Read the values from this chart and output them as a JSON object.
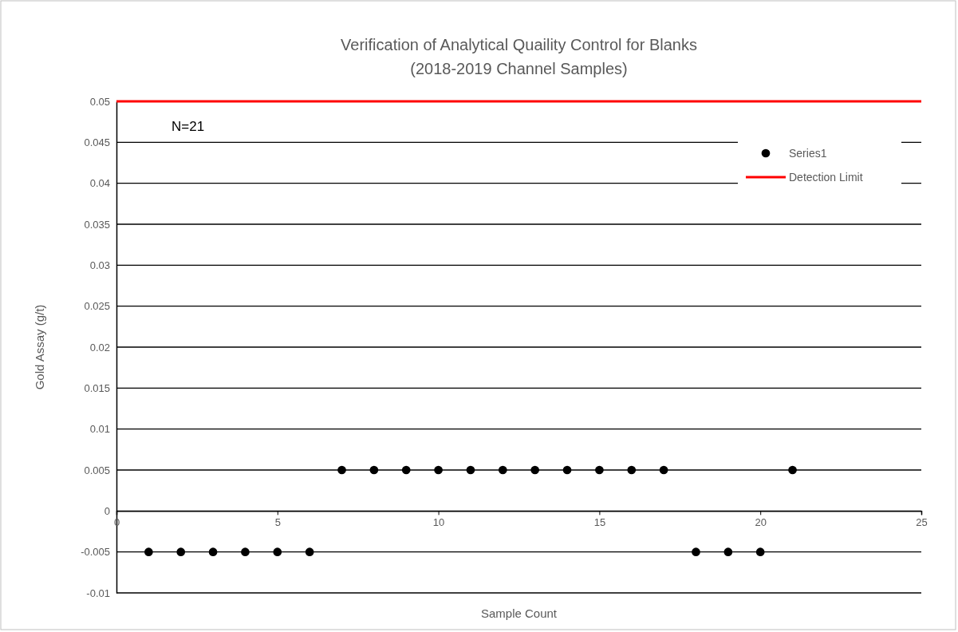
{
  "chart_data": {
    "type": "scatter",
    "title": "Verification of Analytical Quaility Control for Blanks",
    "subtitle": "(2018-2019 Channel Samples)",
    "xlabel": "Sample Count",
    "ylabel": "Gold Assay (g/t)",
    "x": [
      1,
      2,
      3,
      4,
      5,
      6,
      7,
      8,
      9,
      10,
      11,
      12,
      13,
      14,
      15,
      16,
      17,
      18,
      19,
      20,
      21
    ],
    "series": [
      {
        "name": "Series1",
        "color": "#000000",
        "values": [
          -0.005,
          -0.005,
          -0.005,
          -0.005,
          -0.005,
          -0.005,
          0.005,
          0.005,
          0.005,
          0.005,
          0.005,
          0.005,
          0.005,
          0.005,
          0.005,
          0.005,
          0.005,
          -0.005,
          -0.005,
          -0.005,
          0.005
        ]
      }
    ],
    "ref_lines": [
      {
        "axis": "y",
        "value": 0.05,
        "label": "Detection Limit",
        "color": "#ff0000"
      }
    ],
    "annotations": [
      "N=21"
    ],
    "xlim": [
      0,
      25
    ],
    "xticks": [
      0,
      5,
      10,
      15,
      20,
      25
    ],
    "ylim": [
      -0.01,
      0.05
    ],
    "yticks": [
      -0.01,
      -0.005,
      0,
      0.005,
      0.01,
      0.015,
      0.02,
      0.025,
      0.03,
      0.035,
      0.04,
      0.045,
      0.05
    ],
    "grid": "y",
    "legend": "top right",
    "marker": "circle"
  }
}
